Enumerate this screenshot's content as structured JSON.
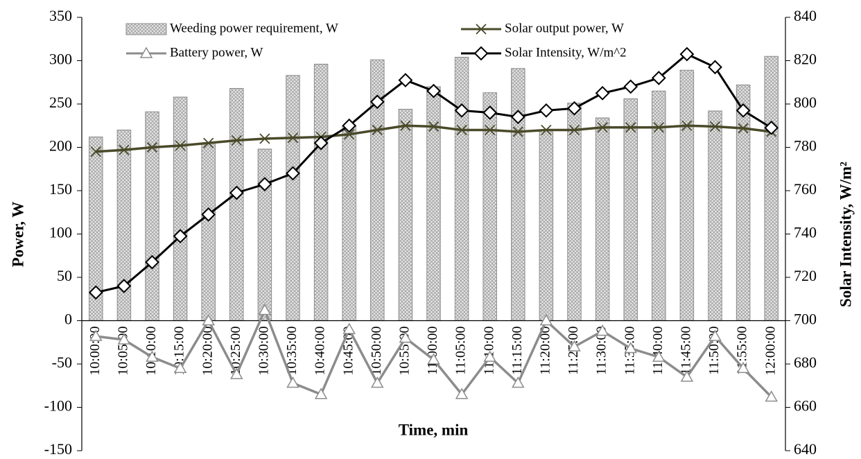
{
  "chart_data": {
    "type": "bar",
    "x_label": "Time, min",
    "y_label": "Power, W",
    "y2_label": "Solar Intensity, W/m²",
    "categories": [
      "10:00:00",
      "10:05:00",
      "10:10:00",
      "10:15:00",
      "10:20:00",
      "10:25:00",
      "10:30:00",
      "10:35:00",
      "10:40:00",
      "10:45:00",
      "10:50:00",
      "10:55:00",
      "11:00:00",
      "11:05:00",
      "11:10:00",
      "11:15:00",
      "11:20:00",
      "11:25:00",
      "11:30:00",
      "11:35:00",
      "11:40:00",
      "11:45:00",
      "11:50:00",
      "11:55:00",
      "12:00:00"
    ],
    "series": [
      {
        "name": "Weeding power requirement, W",
        "type": "bar",
        "color": "#d9d9d9",
        "values": [
          212,
          220,
          241,
          258,
          205,
          268,
          198,
          283,
          296,
          225,
          301,
          244,
          270,
          304,
          263,
          291,
          220,
          251,
          234,
          256,
          265,
          289,
          242,
          272,
          305
        ]
      },
      {
        "name": "Solar output power, W",
        "type": "line",
        "marker": "x",
        "color": "#4a4a2a",
        "values": [
          195,
          197,
          200,
          202,
          205,
          208,
          210,
          211,
          212,
          215,
          220,
          225,
          224,
          220,
          220,
          218,
          220,
          220,
          223,
          223,
          223,
          225,
          224,
          222,
          218
        ]
      },
      {
        "name": "Battery power, W",
        "type": "line",
        "marker": "triangle",
        "color": "#8c8c8c",
        "values": [
          -18,
          -22,
          -42,
          -55,
          0,
          -62,
          12,
          -72,
          -85,
          -10,
          -72,
          -20,
          -45,
          -85,
          -42,
          -72,
          0,
          -30,
          -12,
          -32,
          -42,
          -65,
          -18,
          -55,
          -88
        ]
      },
      {
        "name": "Solar Intensity, W/m^2",
        "type": "line",
        "marker": "diamond",
        "color": "#000000",
        "axis": "y2",
        "values": [
          713,
          716,
          727,
          739,
          749,
          759,
          763,
          768,
          782,
          790,
          801,
          811,
          806,
          797,
          796,
          794,
          797,
          798,
          805,
          808,
          812,
          823,
          817,
          797,
          789
        ]
      }
    ],
    "ylim": [
      -150,
      350
    ],
    "yticks": [
      -150,
      -100,
      -50,
      0,
      50,
      100,
      150,
      200,
      250,
      300,
      350
    ],
    "y2lim": [
      640,
      840
    ],
    "y2ticks": [
      640,
      660,
      680,
      700,
      720,
      740,
      760,
      780,
      800,
      820,
      840
    ]
  }
}
